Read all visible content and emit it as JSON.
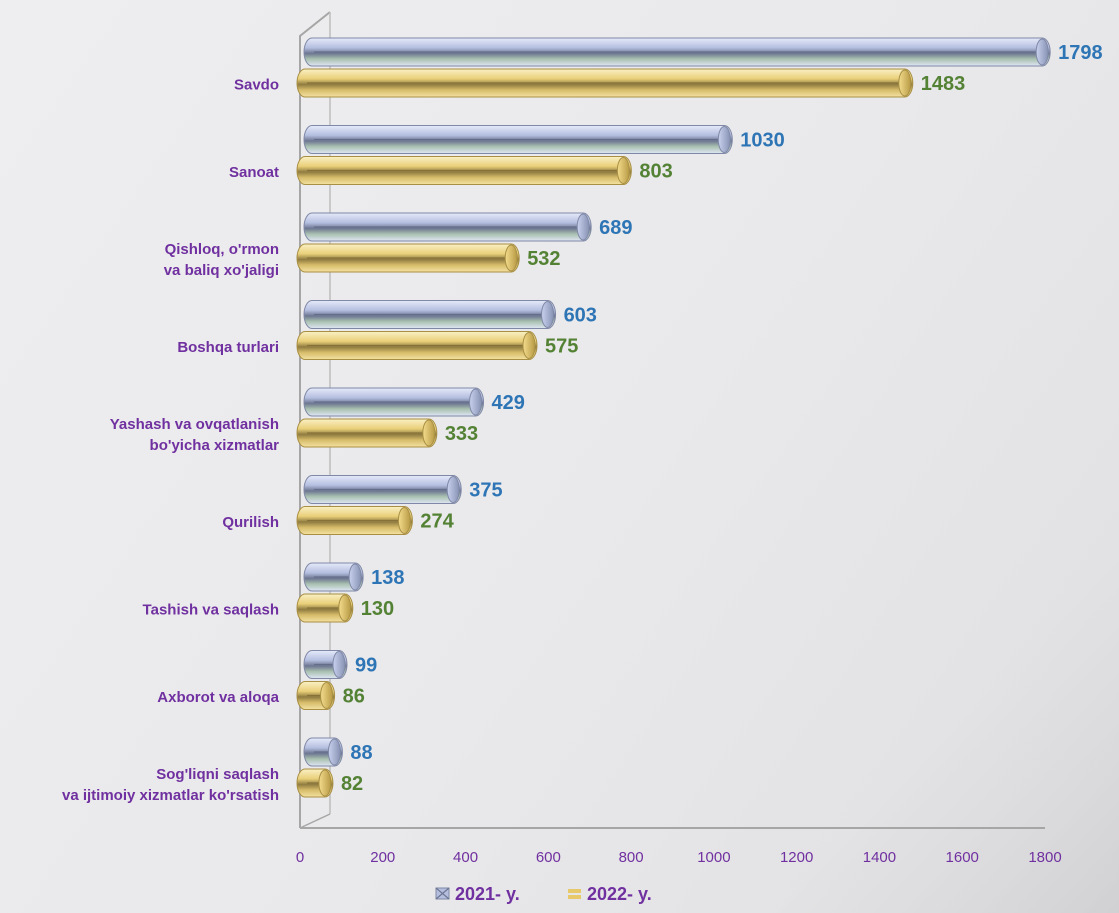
{
  "chart_data": {
    "type": "bar",
    "orientation": "horizontal",
    "categories": [
      "Savdo",
      "Sanoat",
      "Qishloq, o'rmon va baliq xo'jaligi",
      "Boshqa turlari",
      "Yashash va ovqatlanish bo'yicha xizmatlar",
      "Qurilish",
      "Tashish va saqlash",
      "Axborot va aloqa",
      "Sog'liqni saqlash va ijtimoiy xizmatlar ko'rsatish"
    ],
    "category_lines": [
      [
        "Savdo"
      ],
      [
        "Sanoat"
      ],
      [
        "Qishloq, o'rmon",
        "va baliq xo'jaligi"
      ],
      [
        "Boshqa turlari"
      ],
      [
        "Yashash va ovqatlanish",
        "bo'yicha xizmatlar"
      ],
      [
        "Qurilish"
      ],
      [
        "Tashish va saqlash"
      ],
      [
        "Axborot va aloqa"
      ],
      [
        "Sog'liqni saqlash",
        "va ijtimoiy xizmatlar ko'rsatish"
      ]
    ],
    "series": [
      {
        "name": "2021- y.",
        "values": [
          1798,
          1030,
          689,
          603,
          429,
          375,
          138,
          99,
          88
        ],
        "color": "#aab4d6",
        "label_color": "#2e75b6"
      },
      {
        "name": "2022- y.",
        "values": [
          1483,
          803,
          532,
          575,
          333,
          274,
          130,
          86,
          82
        ],
        "color": "#e8c96a",
        "label_color": "#548235"
      }
    ],
    "xlim": [
      0,
      1800
    ],
    "xticks": [
      0,
      200,
      400,
      600,
      800,
      1000,
      1200,
      1400,
      1600,
      1800
    ],
    "tick_color": "#7030a0",
    "category_color": "#7030a0",
    "grid": false,
    "legend_position": "bottom"
  }
}
